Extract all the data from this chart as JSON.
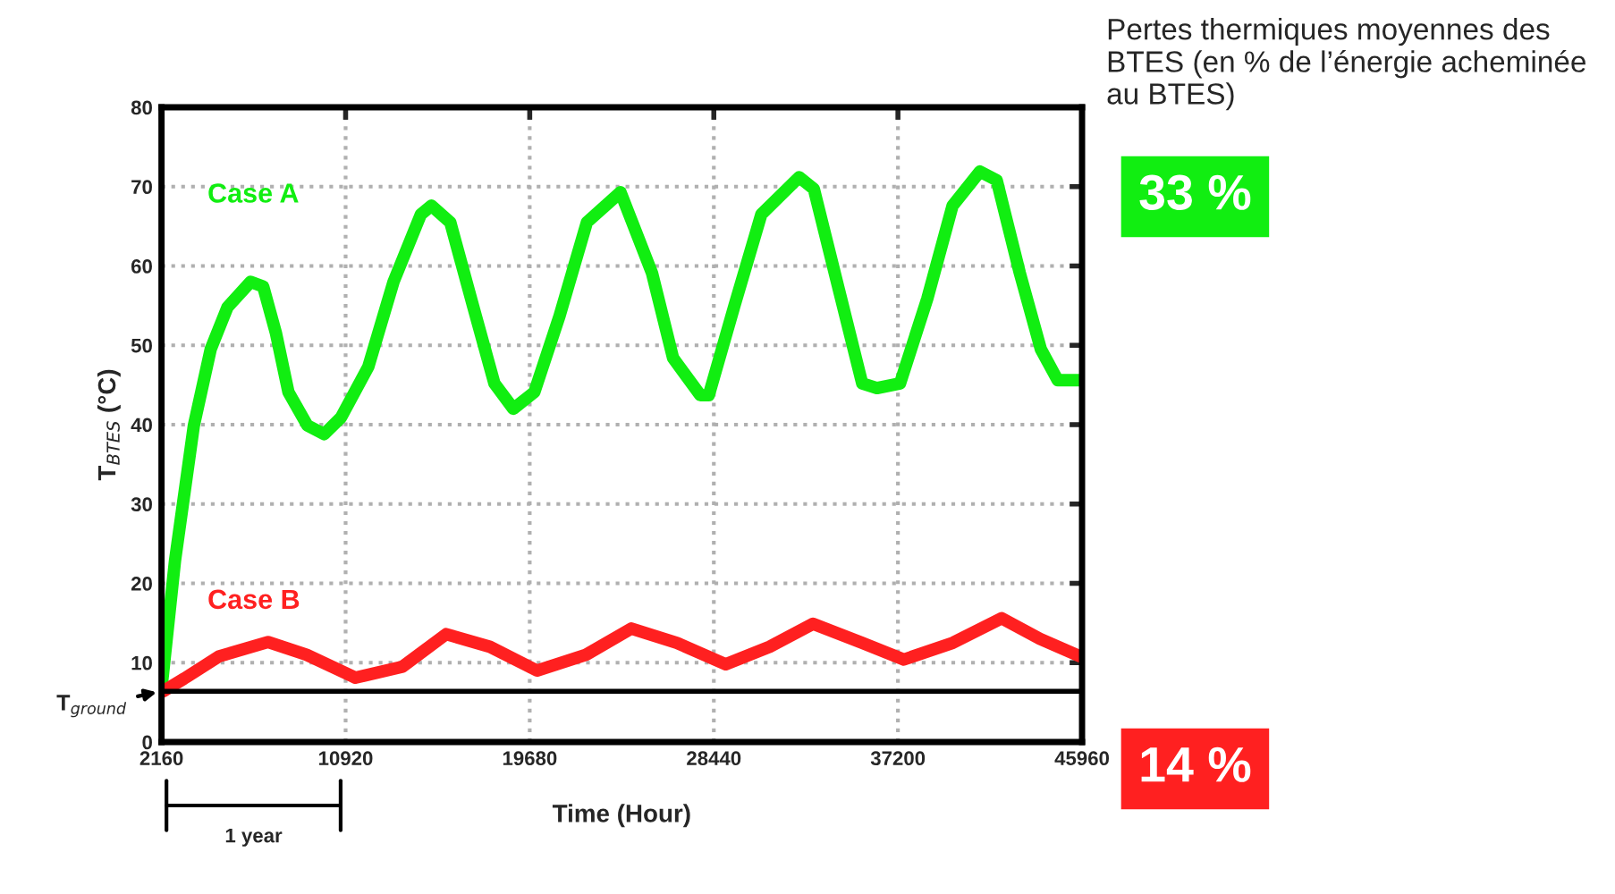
{
  "chart_data": {
    "type": "line",
    "xlabel": "Time (Hour)",
    "ylabel": "T$_{BTES}$ (°C)",
    "xlim": [
      2160,
      45960
    ],
    "xticks": [
      2160,
      10920,
      19680,
      28440,
      37200,
      45960
    ],
    "ylim": [
      0,
      80
    ],
    "yticks": [
      0,
      10,
      20,
      30,
      40,
      50,
      60,
      70,
      80
    ],
    "grid": true,
    "line_style": "solid",
    "series": [
      {
        "name": "Case A",
        "color": "#11ee11",
        "x": [
          2160,
          2800,
          3700,
          4500,
          5300,
          6400,
          7000,
          7600,
          8200,
          9100,
          9900,
          10700,
          12000,
          13200,
          14500,
          15000,
          15900,
          17000,
          18000,
          18900,
          19900,
          21100,
          22400,
          24000,
          25500,
          26500,
          27800,
          28200,
          29400,
          30700,
          32500,
          33200,
          34400,
          35500,
          36200,
          37300,
          38600,
          39800,
          41100,
          41900,
          43000,
          44000,
          44800,
          45900
        ],
        "values": [
          6.8,
          22.8,
          39.9,
          49.5,
          54.8,
          58.0,
          57.4,
          51.6,
          44.1,
          39.9,
          38.8,
          40.9,
          47.3,
          58.0,
          66.5,
          67.6,
          65.5,
          54.8,
          45.2,
          42.0,
          44.1,
          53.7,
          65.5,
          69.3,
          59.1,
          48.4,
          43.7,
          43.7,
          54.8,
          66.5,
          71.2,
          69.7,
          56.9,
          45.2,
          44.6,
          45.2,
          55.9,
          67.6,
          71.9,
          70.8,
          59.1,
          49.5,
          45.6,
          45.6
        ]
      },
      {
        "name": "Case B",
        "color": "#ff2020",
        "x": [
          2240,
          3240,
          4900,
          7230,
          9060,
          11390,
          13630,
          15710,
          17790,
          20030,
          22360,
          24520,
          26680,
          29010,
          31090,
          33160,
          35490,
          37480,
          39810,
          42140,
          43960,
          45960
        ],
        "values": [
          6.4,
          8.0,
          10.8,
          12.6,
          11.0,
          8.1,
          9.5,
          13.6,
          12.0,
          9.0,
          11.0,
          14.3,
          12.5,
          9.8,
          12.0,
          14.9,
          12.5,
          10.4,
          12.5,
          15.6,
          13.0,
          10.7
        ]
      }
    ],
    "ref_lines": [
      {
        "axis": "y",
        "value": 6.4,
        "label": "T$_{ground}$",
        "color": "#000000",
        "line_style": "solid"
      }
    ],
    "annotations": [
      "Pertes thermiques moyennes des BTES (en % de l’énergie acheminée au BTES)",
      "33 %",
      "14 %",
      "1 year"
    ]
  }
}
